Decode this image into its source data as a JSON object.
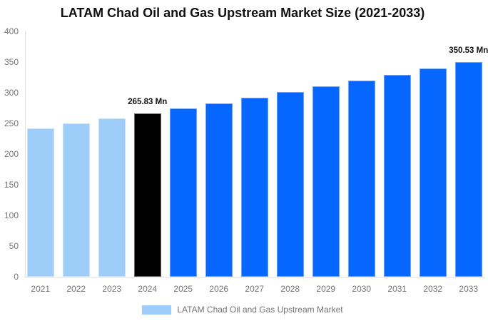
{
  "chart_data": {
    "type": "bar",
    "title": "LATAM Chad Oil and Gas Upstream Market Size (2021-2033)",
    "unit": "Mn",
    "categories": [
      "2021",
      "2022",
      "2023",
      "2024",
      "2025",
      "2026",
      "2027",
      "2028",
      "2029",
      "2030",
      "2031",
      "2032",
      "2033"
    ],
    "values": [
      242.4,
      250.1,
      257.9,
      265.83,
      274.1,
      282.7,
      291.5,
      300.6,
      310.0,
      319.7,
      329.6,
      339.9,
      350.53
    ],
    "bar_colors": [
      "#9FCDFA",
      "#9FCDFA",
      "#9FCDFA",
      "#000000",
      "#0567FE",
      "#0567FE",
      "#0567FE",
      "#0567FE",
      "#0567FE",
      "#0567FE",
      "#0567FE",
      "#0567FE",
      "#0567FE"
    ],
    "annotations": [
      {
        "category_index": 3,
        "text": "265.83 Mn"
      },
      {
        "category_index": 12,
        "text": "350.53 Mn"
      }
    ],
    "ylim": [
      0,
      400
    ],
    "yticks": [
      0,
      50,
      100,
      150,
      200,
      250,
      300,
      350,
      400
    ],
    "xlabel": "",
    "ylabel": "",
    "grid": false,
    "legend_position": "bottom",
    "legend": {
      "label": "LATAM Chad Oil and Gas Upstream Market",
      "swatch_color": "#9FCDFA"
    },
    "colors": {
      "historic": "#9FCDFA",
      "base_year": "#000000",
      "forecast": "#0567FE",
      "axis_line": "#E0E0E0",
      "tick_text": "#757575",
      "title_text": "#111111"
    }
  }
}
